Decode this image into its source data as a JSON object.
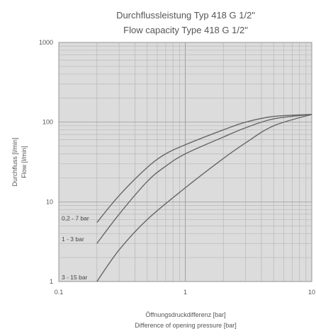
{
  "chart_data": {
    "type": "line",
    "title": "Durchflussleistung Typ 418 G 1/2\"",
    "subtitle": "Flow capacity Type 418 G 1/2\"",
    "xlabel": "Öffnungsdruckdifferenz [bar]",
    "xlabel2": "Difference of opening pressure [bar]",
    "ylabel": "Durchfluss [l/min]",
    "ylabel2": "Flow [l/min]",
    "x_scale": "log",
    "y_scale": "log",
    "xlim": [
      0.1,
      10
    ],
    "ylim": [
      1,
      1000
    ],
    "x_ticks": [
      "0.1",
      "1",
      "10"
    ],
    "y_ticks": [
      "1000",
      "100",
      "10",
      "1"
    ],
    "grid": true,
    "colors": {
      "grid": "#b8b8b8",
      "plot_bg": "#dcdcdc",
      "curve": "#666666"
    },
    "series": [
      {
        "name": "0,2 - 7 bar",
        "x": [
          0.2,
          0.3,
          0.5,
          0.7,
          1,
          2,
          3,
          5,
          10
        ],
        "y": [
          5.5,
          12,
          27,
          40,
          52,
          80,
          100,
          118,
          125
        ]
      },
      {
        "name": "1 - 3 bar",
        "x": [
          0.2,
          0.3,
          0.5,
          0.7,
          1,
          2,
          3,
          5,
          10
        ],
        "y": [
          3,
          7,
          18,
          28,
          40,
          65,
          85,
          110,
          125
        ]
      },
      {
        "name": "3 - 15 bar",
        "x": [
          0.2,
          0.3,
          0.5,
          1,
          2,
          3,
          5,
          10
        ],
        "y": [
          1,
          2.5,
          6,
          15,
          35,
          55,
          90,
          125
        ]
      }
    ]
  }
}
